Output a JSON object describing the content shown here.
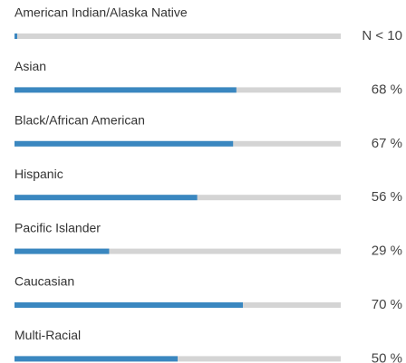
{
  "chart_data": {
    "type": "bar",
    "categories": [
      "American Indian/Alaska Native",
      "Asian",
      "Black/African American",
      "Hispanic",
      "Pacific Islander",
      "Caucasian",
      "Multi-Racial"
    ],
    "values": [
      null,
      68,
      67,
      56,
      29,
      70,
      50
    ],
    "value_labels": [
      "N < 10",
      "68 %",
      "67 %",
      "56 %",
      "29 %",
      "70 %",
      "50 %"
    ],
    "xlim": [
      0,
      100
    ],
    "color": "#3a87c0",
    "track_color": "#d4d4d4"
  }
}
